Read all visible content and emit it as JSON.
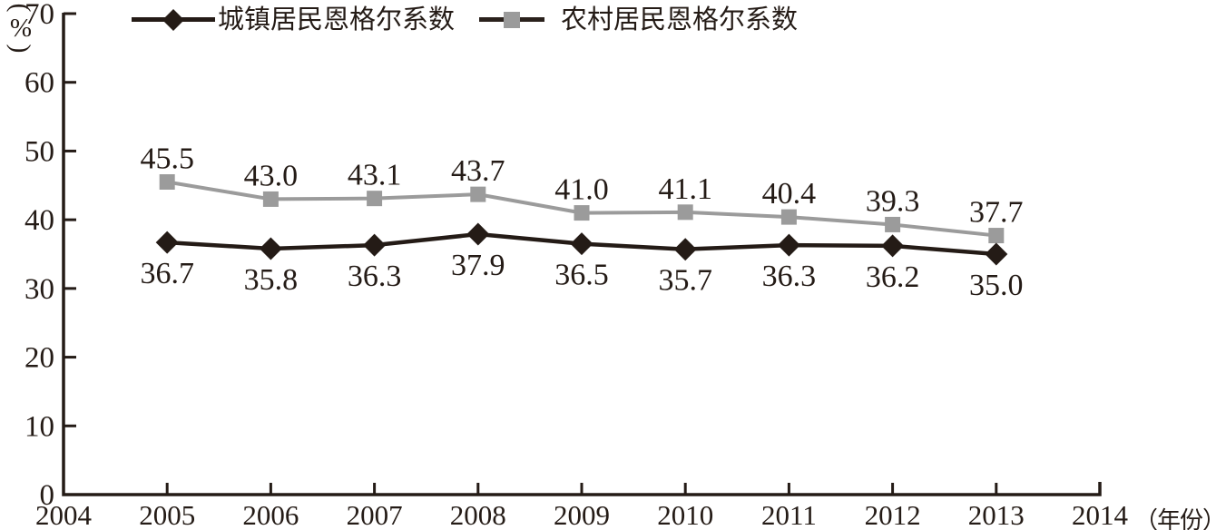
{
  "axes": {
    "y_unit": {
      "open": "(",
      "symbol": "%",
      "close": ")"
    },
    "x_unit": "（年份）",
    "y_ticks": [
      0,
      10,
      20,
      30,
      40,
      50,
      60,
      70
    ],
    "x_ticks": [
      2004,
      2005,
      2006,
      2007,
      2008,
      2009,
      2010,
      2011,
      2012,
      2013,
      2014
    ]
  },
  "legend": [
    {
      "key": "urban",
      "label": "城镇居民恩格尔系数",
      "marker": "diamond",
      "marker_color": "#241b16",
      "line_color": "#241b16"
    },
    {
      "key": "rural",
      "label": "农村居民恩格尔系数",
      "marker": "square",
      "marker_color": "#9b9b9b",
      "line_color": "#2a211c"
    }
  ],
  "chart_data": {
    "type": "line",
    "title": "",
    "xlabel": "（年份）",
    "ylabel": "(%)",
    "x": [
      2005,
      2006,
      2007,
      2008,
      2009,
      2010,
      2011,
      2012,
      2013
    ],
    "series": [
      {
        "key": "rural",
        "name": "农村居民恩格尔系数",
        "values": [
          45.5,
          43.0,
          43.1,
          43.7,
          41.0,
          41.1,
          40.4,
          39.3,
          37.7
        ],
        "color": "#9b9b9b",
        "marker": "square",
        "marker_color": "#9b9b9b",
        "label_position": "above"
      },
      {
        "key": "urban",
        "name": "城镇居民恩格尔系数",
        "values": [
          36.7,
          35.8,
          36.3,
          37.9,
          36.5,
          35.7,
          36.3,
          36.2,
          35.0
        ],
        "color": "#241b16",
        "marker": "diamond",
        "marker_color": "#241b16",
        "label_position": "below"
      }
    ],
    "ylim": [
      0,
      70
    ],
    "xlim": [
      2004,
      2014
    ],
    "y_tick_step": 10,
    "grid": false,
    "legend_position": "top",
    "value_format": "0.1f"
  },
  "colors": {
    "axis": "#241b16",
    "text": "#241b16",
    "background": "#ffffff"
  }
}
